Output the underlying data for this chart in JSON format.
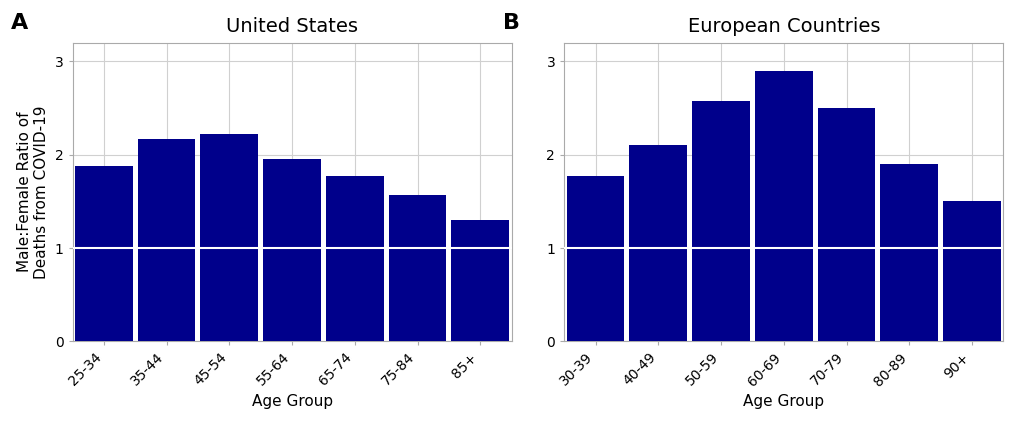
{
  "panel_A": {
    "title": "United States",
    "label": "A",
    "categories": [
      "25-34",
      "35-44",
      "45-54",
      "55-64",
      "65-74",
      "75-84",
      "85+"
    ],
    "values": [
      1.88,
      2.17,
      2.22,
      1.95,
      1.77,
      1.57,
      1.3
    ],
    "xlabel": "Age Group",
    "ylabel": "Male:Female Ratio of\nDeaths from COVID-19"
  },
  "panel_B": {
    "title": "European Countries",
    "label": "B",
    "categories": [
      "30-39",
      "40-49",
      "50-59",
      "60-69",
      "70-79",
      "80-89",
      "90+"
    ],
    "values": [
      1.77,
      2.1,
      2.58,
      2.9,
      2.5,
      1.9,
      1.5
    ],
    "xlabel": "Age Group",
    "ylabel": ""
  },
  "bar_color": "#00008B",
  "hline_color": "white",
  "hline_y": 1.0,
  "hline_lw": 1.5,
  "ylim": [
    0,
    3.2
  ],
  "yticks": [
    0,
    1,
    2,
    3
  ],
  "grid_color": "#d0d0d0",
  "background_color": "#ffffff",
  "panel_bg_color": "#ffffff",
  "bar_edgecolor": "none",
  "title_fontsize": 14,
  "label_fontsize": 16,
  "axis_fontsize": 11,
  "tick_fontsize": 10,
  "ylabel_fontsize": 11,
  "spine_color": "#aaaaaa",
  "bar_width": 0.92
}
